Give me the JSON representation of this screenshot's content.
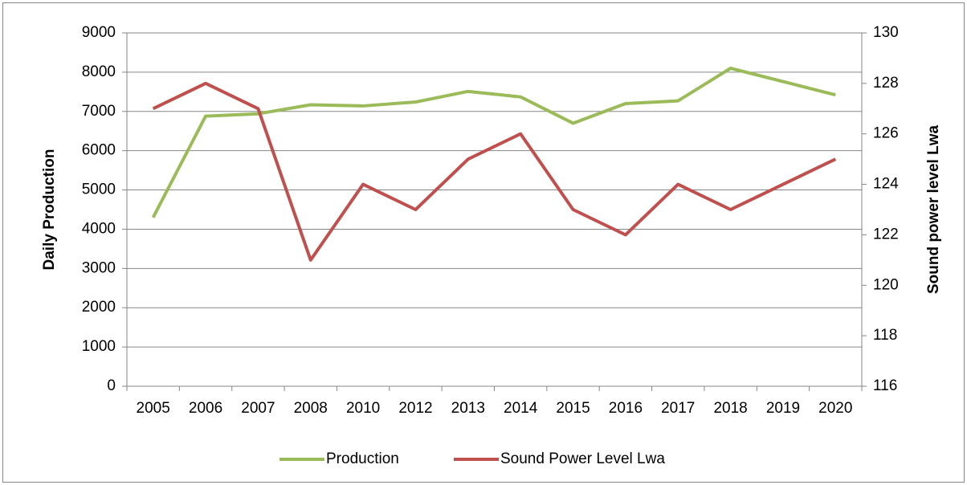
{
  "chart_data": {
    "type": "line",
    "categories": [
      "2005",
      "2006",
      "2007",
      "2008",
      "2010",
      "2012",
      "2013",
      "2014",
      "2015",
      "2016",
      "2017",
      "2018",
      "2019",
      "2020"
    ],
    "series": [
      {
        "name": "Production",
        "color": "#9bbb59",
        "values": [
          4300,
          6880,
          6940,
          7170,
          7140,
          7240,
          7510,
          7370,
          6700,
          7200,
          7270,
          8100,
          7760,
          7420
        ]
      },
      {
        "name": "Sound Power Level Lwa",
        "color": "#c0504d",
        "axis": "y2",
        "values": [
          127,
          128,
          127,
          121,
          124,
          123,
          125,
          126,
          123,
          122,
          124,
          123,
          124,
          125
        ]
      }
    ],
    "y_label": "Daily Production",
    "y2_label": "Sound power level Lwa",
    "ylim": [
      0,
      9000
    ],
    "yticks": [
      0,
      1000,
      2000,
      3000,
      4000,
      5000,
      6000,
      7000,
      8000,
      9000
    ],
    "y2lim": [
      116,
      130
    ],
    "y2ticks": [
      116,
      118,
      120,
      122,
      124,
      126,
      128,
      130
    ],
    "grid": true,
    "legend": "bottom"
  }
}
